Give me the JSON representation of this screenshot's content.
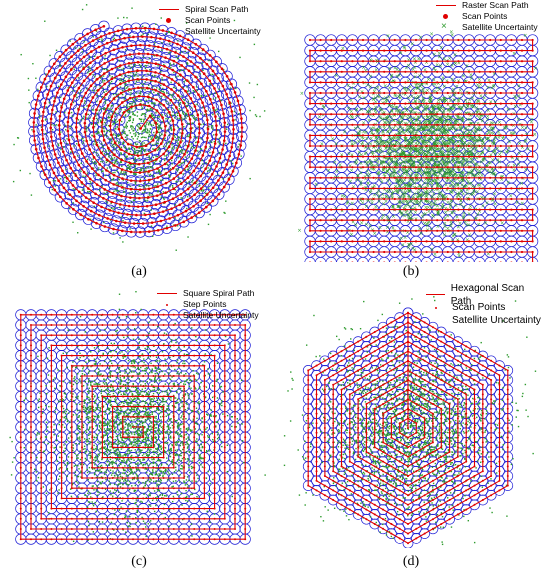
{
  "figure": {
    "panels": [
      {
        "caption": "(a)",
        "legend": [
          "Spiral Scan Path",
          "Scan Points",
          "Satellite Uncertainty"
        ]
      },
      {
        "caption": "(b)",
        "legend": [
          "Raster Scan Path",
          "Scan Points",
          "Satellite Uncertainty"
        ]
      },
      {
        "caption": "(c)",
        "legend": [
          "Square Spiral Path",
          "Step Points",
          "Satellite Uncertainty"
        ]
      },
      {
        "caption": "(d)",
        "legend": [
          "Hexagonal Scan Path",
          "Scan Points",
          "Satellite Uncertainty"
        ]
      }
    ]
  },
  "colors": {
    "path": "#e00000",
    "footprint": "#1f1fd6",
    "uncertainty": "#2e9b2e"
  },
  "chart_data": [
    {
      "type": "scatter",
      "pattern": "spiral",
      "grid": false,
      "axes": false,
      "series": [
        {
          "name": "Spiral Scan Path"
        },
        {
          "name": "Scan Points"
        },
        {
          "name": "Satellite Uncertainty"
        }
      ]
    },
    {
      "type": "scatter",
      "pattern": "raster",
      "grid": false,
      "axes": false,
      "series": [
        {
          "name": "Raster Scan Path"
        },
        {
          "name": "Scan Points"
        },
        {
          "name": "Satellite Uncertainty"
        }
      ]
    },
    {
      "type": "scatter",
      "pattern": "square-spiral",
      "grid": false,
      "axes": false,
      "series": [
        {
          "name": "Square Spiral Path"
        },
        {
          "name": "Step Points"
        },
        {
          "name": "Satellite Uncertainty"
        }
      ]
    },
    {
      "type": "scatter",
      "pattern": "hexagonal",
      "grid": false,
      "axes": false,
      "series": [
        {
          "name": "Hexagonal Scan Path"
        },
        {
          "name": "Scan Points"
        },
        {
          "name": "Satellite Uncertainty"
        }
      ]
    }
  ]
}
